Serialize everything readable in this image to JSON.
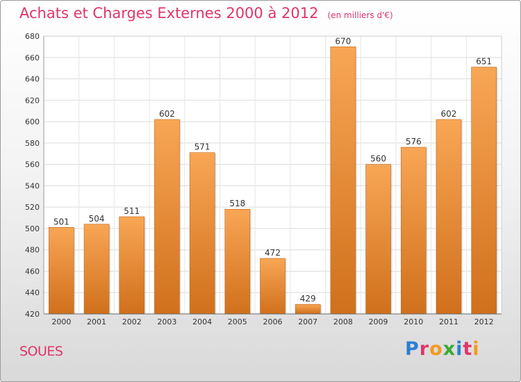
{
  "title": "Achats et Charges Externes 2000 à 2012",
  "subtitle": "(en milliers d'€)",
  "place": "SOUES",
  "logo": {
    "text": "Proxiti",
    "colors": [
      "#2a7fd4",
      "#e0356a",
      "#f39a1e",
      "#3aa935",
      "#2a7fd4",
      "#e0356a",
      "#f39a1e"
    ]
  },
  "colors": {
    "bar_top": "#f8a655",
    "bar_bottom": "#d0701c",
    "accent": "#e0356a"
  },
  "chart_data": {
    "type": "bar",
    "categories": [
      "2000",
      "2001",
      "2002",
      "2003",
      "2004",
      "2005",
      "2006",
      "2007",
      "2008",
      "2009",
      "2010",
      "2011",
      "2012"
    ],
    "values": [
      501,
      504,
      511,
      602,
      571,
      518,
      472,
      429,
      670,
      560,
      576,
      602,
      651
    ],
    "ylim": [
      420,
      680
    ],
    "yticks": [
      420,
      440,
      460,
      480,
      500,
      520,
      540,
      560,
      580,
      600,
      620,
      640,
      660,
      680
    ],
    "grid": true,
    "legend": "none"
  }
}
